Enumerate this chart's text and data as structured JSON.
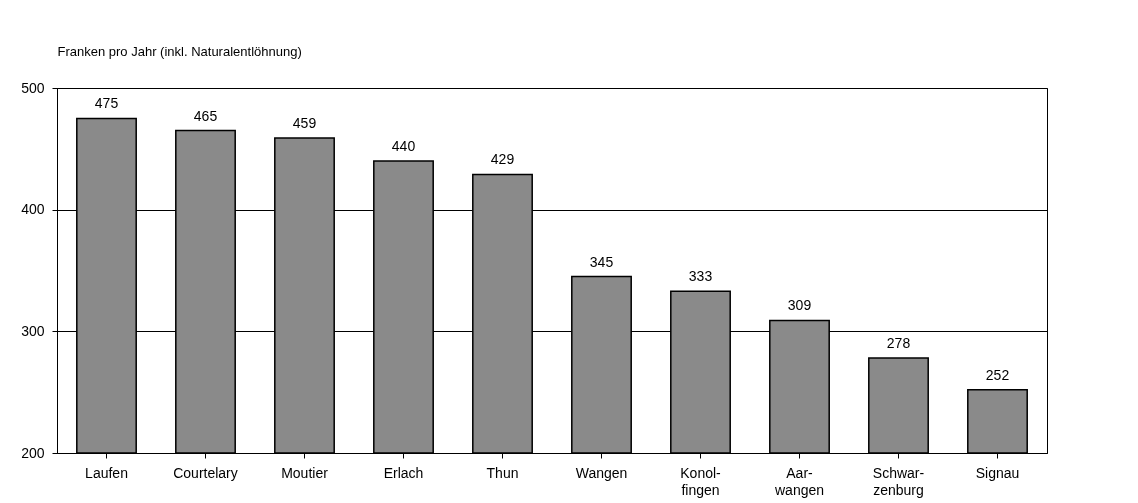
{
  "chart_data": {
    "type": "bar",
    "ylabel": "Franken pro Jahr (inkl. Naturalentlöhnung)",
    "categories": [
      "Laufen",
      "Courtelary",
      "Moutier",
      "Erlach",
      "Thun",
      "Wangen",
      "Konol-fingen",
      "Aar-wangen",
      "Schwar-zenburg",
      "Signau"
    ],
    "values": [
      475,
      465,
      459,
      440,
      429,
      345,
      333,
      309,
      278,
      252
    ],
    "color": "#8a8a8a",
    "ylim": [
      200,
      500
    ],
    "yticks": [
      200,
      300,
      400,
      500
    ],
    "grid": "y",
    "data_labels": true
  }
}
